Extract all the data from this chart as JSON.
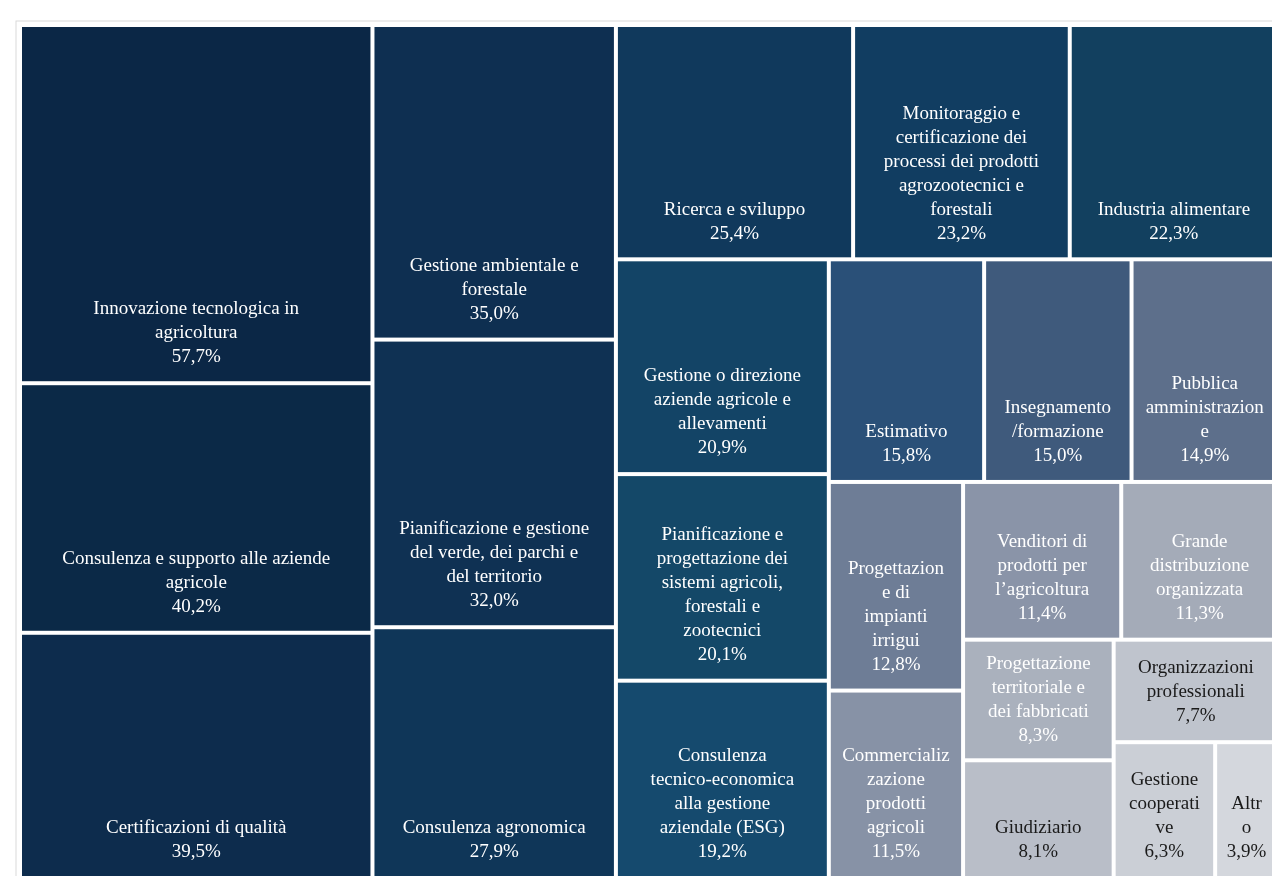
{
  "chart_data": {
    "type": "other",
    "categories": [
      "Innovazione tecnologica in agricoltura",
      "Consulenza e supporto alle aziende agricole",
      "Certificazioni di qualità",
      "Gestione ambientale e forestale",
      "Pianificazione e gestione del verde, dei parchi e del territorio",
      "Consulenza agronomica",
      "Ricerca e sviluppo",
      "Monitoraggio e certificazione dei processi dei prodotti agrozootecnici e forestali",
      "Industria alimentare",
      "Gestione o direzione aziende agricole e allevamenti",
      "Pianificazione e progettazione dei sistemi agricoli, forestali e zootecnici",
      "Consulenza tecnico-economica alla gestione aziendale (ESG)",
      "Estimativo",
      "Insegnamento /formazione",
      "Pubblica amministrazione",
      "Progettazione di impianti irrigui",
      "Commercializzazione prodotti agricoli",
      "Venditori di prodotti per l’agricoltura",
      "Grande distribuzione organizzata",
      "Progettazione territoriale e dei fabbricati",
      "Giudiziario",
      "Organizzazioni professionali",
      "Gestione cooperative",
      "Altro"
    ],
    "values": [
      57.7,
      40.2,
      39.5,
      35.0,
      32.0,
      27.9,
      25.4,
      23.2,
      22.3,
      20.9,
      20.1,
      19.2,
      15.8,
      15.0,
      14.9,
      12.8,
      11.5,
      11.4,
      11.3,
      8.3,
      8.1,
      7.7,
      6.3,
      3.9
    ],
    "value_labels": [
      "57,7%",
      "40,2%",
      "39,5%",
      "35,0%",
      "32,0%",
      "27,9%",
      "25,4%",
      "23,2%",
      "22,3%",
      "20,9%",
      "20,1%",
      "19,2%",
      "15,8%",
      "15,0%",
      "14,9%",
      "12,8%",
      "11,5%",
      "11,4%",
      "11,3%",
      "8,3%",
      "8,1%",
      "7,7%",
      "6,3%",
      "3,9%"
    ],
    "colors": [
      "#0b2746",
      "#0b2947",
      "#0d2c4d",
      "#0e2f51",
      "#0f3153",
      "#0f3658",
      "#10395c",
      "#113d61",
      "#12405f",
      "#134466",
      "#144868",
      "#154a6e",
      "#2a5078",
      "#3f5a7c",
      "#5d6f8b",
      "#6e7d96",
      "#8792a6",
      "#8a94a8",
      "#a4abb8",
      "#aab1bd",
      "#b9bec8",
      "#bfc4cd",
      "#cbcfd6",
      "#d4d7dd"
    ]
  }
}
